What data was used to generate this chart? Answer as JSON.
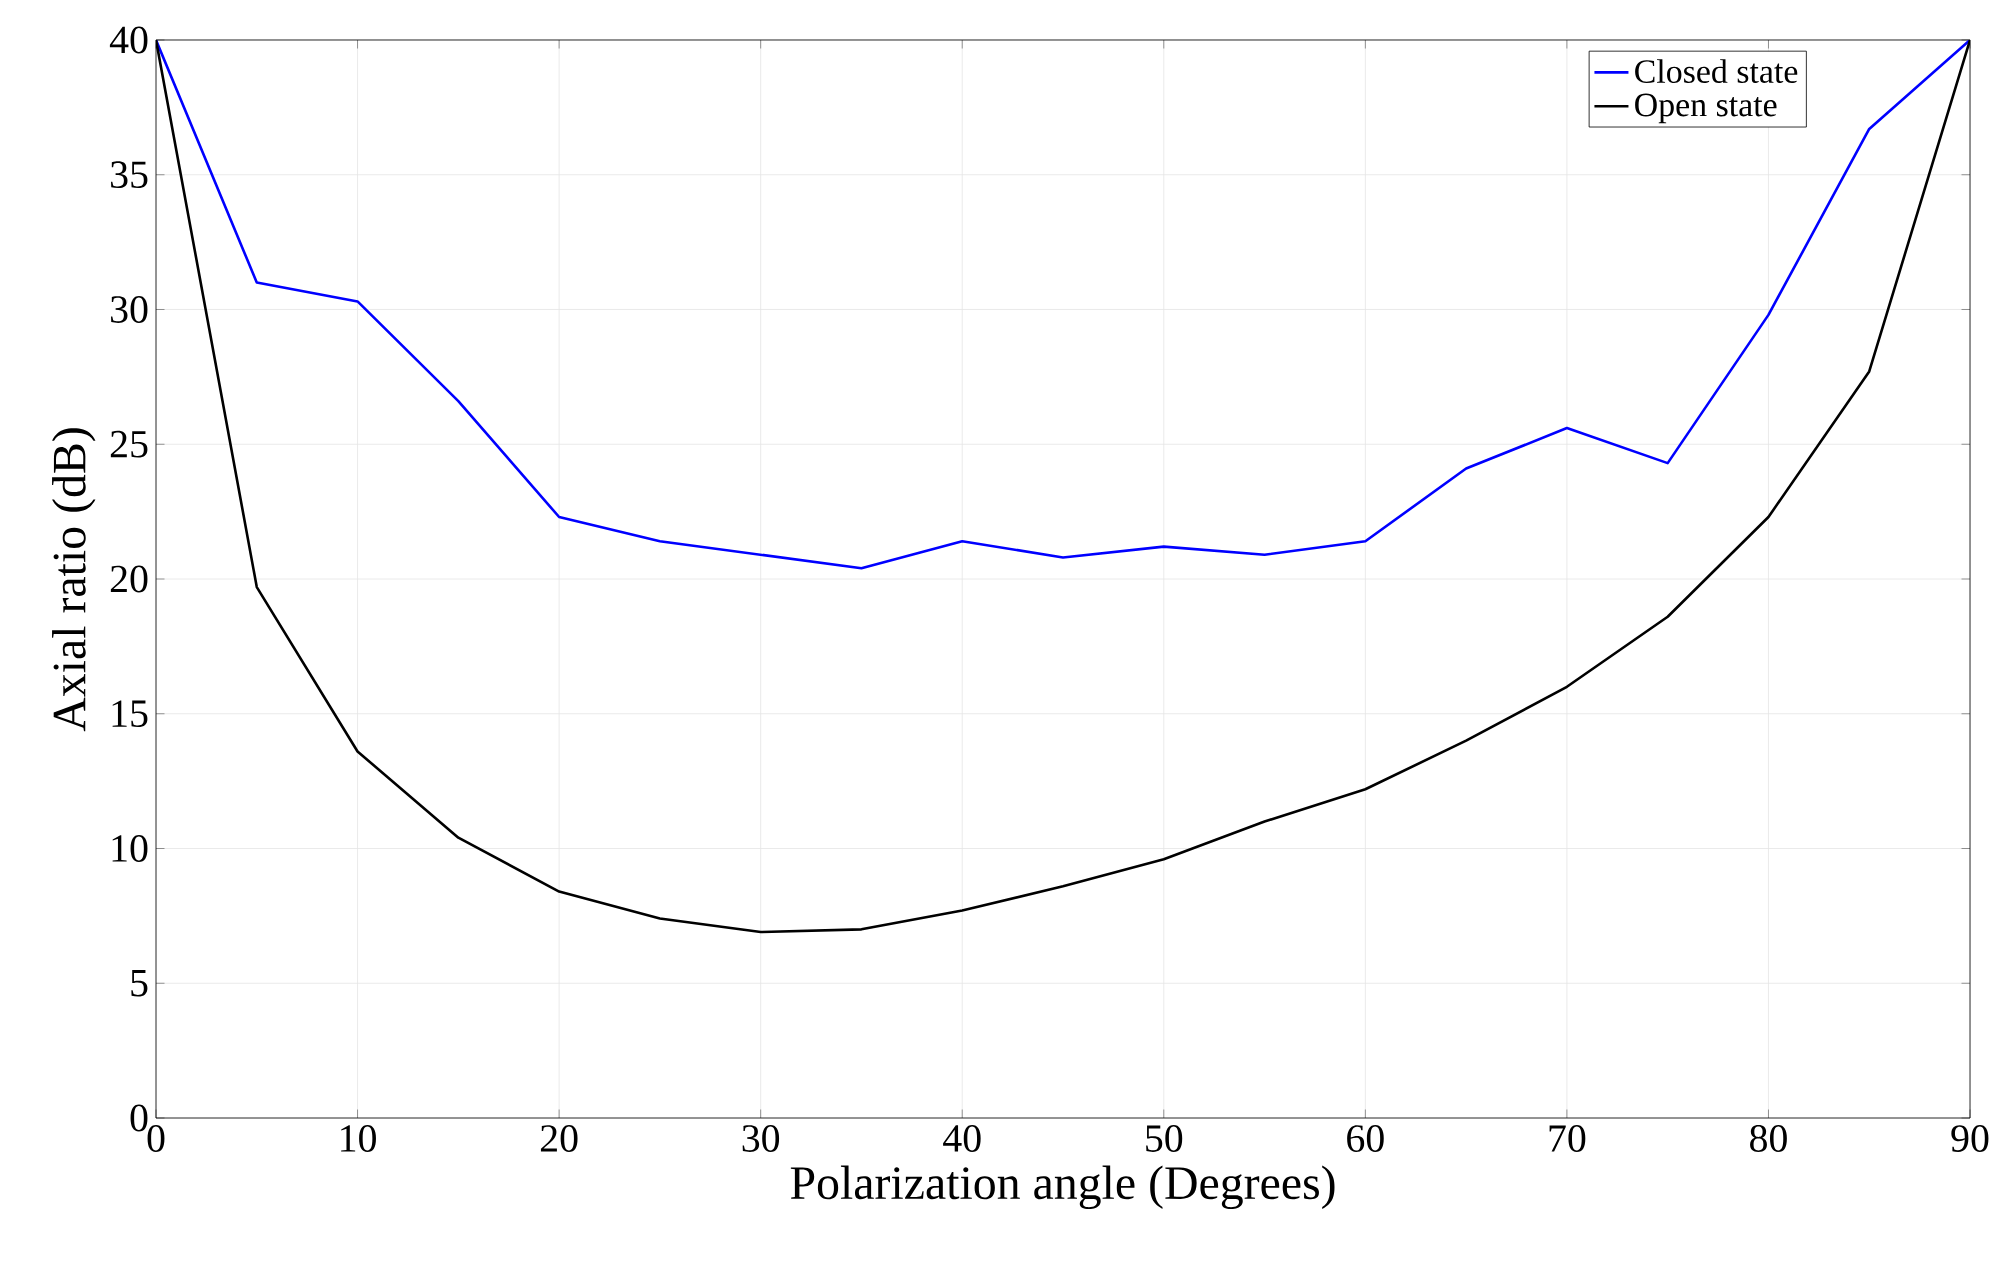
{
  "chart_data": {
    "type": "line",
    "xlabel": "Polarization angle (Degrees)",
    "ylabel": "Axial ratio (dB)",
    "x": [
      0,
      5,
      10,
      15,
      20,
      25,
      30,
      35,
      40,
      45,
      50,
      55,
      60,
      65,
      70,
      75,
      80,
      85,
      90
    ],
    "series": [
      {
        "name": "Closed state",
        "color": "#0000ff",
        "values": [
          40,
          31.0,
          30.3,
          26.6,
          22.3,
          21.4,
          20.9,
          20.4,
          21.4,
          20.8,
          21.2,
          20.9,
          21.4,
          24.1,
          25.6,
          24.3,
          29.8,
          36.7,
          40
        ]
      },
      {
        "name": "Open state",
        "color": "#000000",
        "values": [
          40,
          19.7,
          13.6,
          10.4,
          8.4,
          7.4,
          6.9,
          7.0,
          7.7,
          8.6,
          9.6,
          11.0,
          12.2,
          14.0,
          16.0,
          18.6,
          22.3,
          27.7,
          40
        ]
      }
    ],
    "xlim": [
      0,
      90
    ],
    "xticks": [
      0,
      10,
      20,
      30,
      40,
      50,
      60,
      70,
      80,
      90
    ],
    "ylim": [
      0,
      40
    ],
    "yticks": [
      0,
      5,
      10,
      15,
      20,
      25,
      30,
      35,
      40
    ],
    "grid": true,
    "legend": "top right",
    "marker": "none",
    "line_style": "solid"
  }
}
